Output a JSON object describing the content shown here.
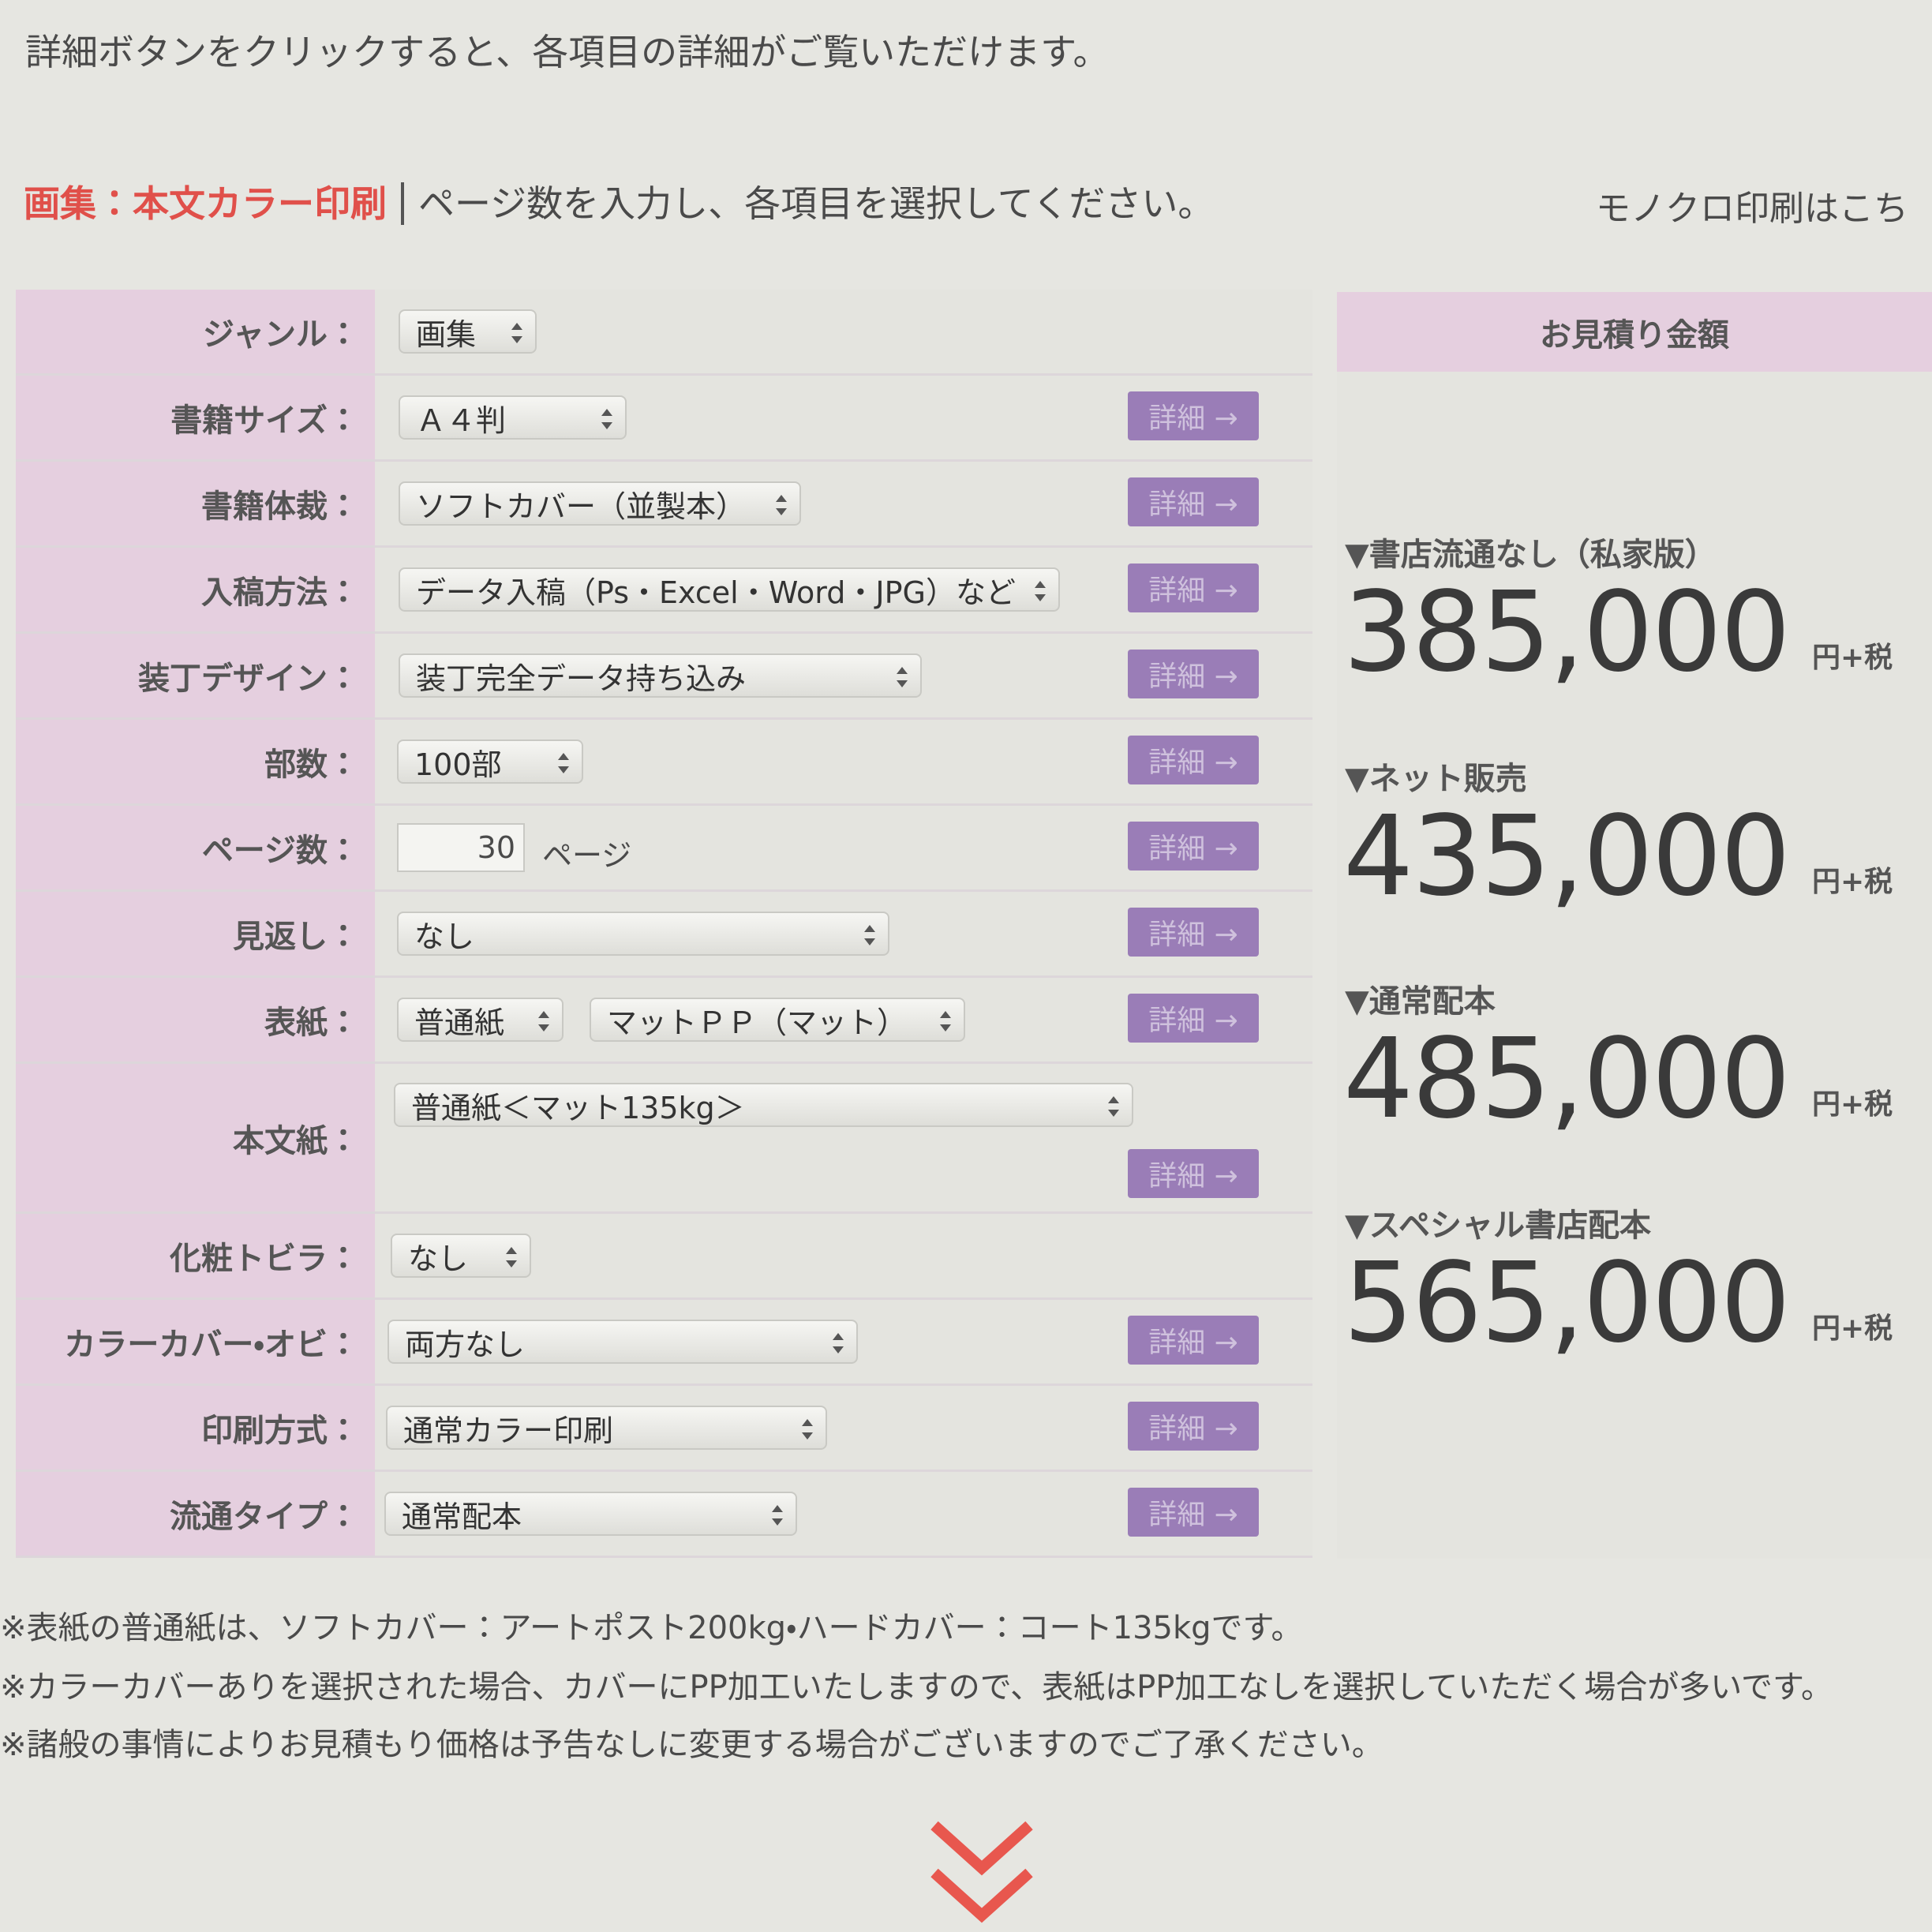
{
  "intro": "詳細ボタンをクリックすると、各項目の詳細がご覧いただけます。",
  "heading": {
    "title": "画集：本文カラー印刷",
    "instruction": "ページ数を入力し、各項目を選択してください。"
  },
  "mono_link": "モノクロ印刷はこち",
  "detail_button": "詳細 →",
  "form": [
    {
      "label": "ジャンル：",
      "controls": [
        {
          "type": "select",
          "value": "画集"
        }
      ],
      "detail": false
    },
    {
      "label": "書籍サイズ：",
      "controls": [
        {
          "type": "select",
          "value": "Ａ４判"
        }
      ],
      "detail": true
    },
    {
      "label": "書籍体裁：",
      "controls": [
        {
          "type": "select",
          "value": "ソフトカバー（並製本）"
        }
      ],
      "detail": true
    },
    {
      "label": "入稿方法：",
      "controls": [
        {
          "type": "select",
          "value": "データ入稿（Ps・Excel・Word・JPG）など"
        }
      ],
      "detail": true
    },
    {
      "label": "装丁デザイン：",
      "controls": [
        {
          "type": "select",
          "value": "装丁完全データ持ち込み"
        }
      ],
      "detail": true
    },
    {
      "label": "部数：",
      "controls": [
        {
          "type": "select",
          "value": "100部"
        }
      ],
      "detail": true
    },
    {
      "label": "ページ数：",
      "controls": [
        {
          "type": "input",
          "value": "30",
          "unit": "ページ"
        }
      ],
      "detail": true
    },
    {
      "label": "見返し：",
      "controls": [
        {
          "type": "select",
          "value": "なし"
        }
      ],
      "detail": true
    },
    {
      "label": "表紙：",
      "controls": [
        {
          "type": "select",
          "value": "普通紙"
        },
        {
          "type": "select",
          "value": "マットＰＰ（マット）"
        }
      ],
      "detail": true
    },
    {
      "label": "本文紙：",
      "controls": [
        {
          "type": "select",
          "value": "普通紙＜マット135kg＞"
        }
      ],
      "detail": true
    },
    {
      "label": "化粧トビラ：",
      "controls": [
        {
          "type": "select",
          "value": "なし"
        }
      ],
      "detail": false
    },
    {
      "label": "カラーカバー・オビ：",
      "controls": [
        {
          "type": "select",
          "value": "両方なし"
        }
      ],
      "detail": true
    },
    {
      "label": "印刷方式：",
      "controls": [
        {
          "type": "select",
          "value": "通常カラー印刷"
        }
      ],
      "detail": true
    },
    {
      "label": "流通タイプ：",
      "controls": [
        {
          "type": "select",
          "value": "通常配本"
        }
      ],
      "detail": true
    }
  ],
  "estimate": {
    "header": "お見積り金額",
    "items": [
      {
        "label": "▼書店流通なし（私家版）",
        "price": "385,000",
        "unit": "円+税"
      },
      {
        "label": "▼ネット販売",
        "price": "435,000",
        "unit": "円+税"
      },
      {
        "label": "▼通常配本",
        "price": "485,000",
        "unit": "円+税"
      },
      {
        "label": "▼スペシャル書店配本",
        "price": "565,000",
        "unit": "円+税"
      }
    ]
  },
  "notes": [
    "※表紙の普通紙は、ソフトカバー：アートポスト200kg・ハードカバー：コート135kgです。",
    "※カラーカバーありを選択された場合、カバーにPP加工いたしますので、表紙はPP加工なしを選択していただく場合が多いです。",
    "※諸般の事情によりお見積もり価格は予告なしに変更する場合がございますのでご了承ください。"
  ]
}
